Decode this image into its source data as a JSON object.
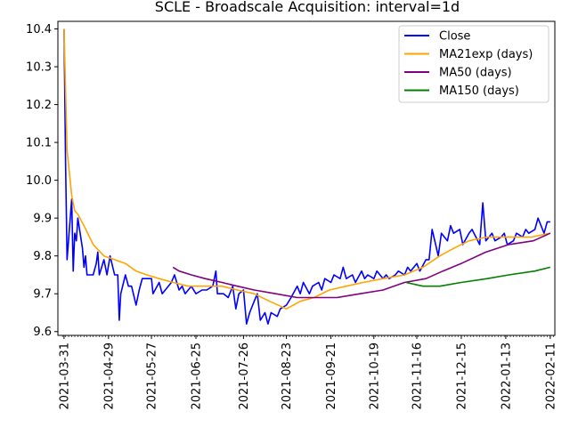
{
  "chart_data": {
    "type": "line",
    "title": "SCLE - Broadscale Acquisition: interval=1d",
    "xlabel": "",
    "ylabel": "",
    "xlim": [
      "2021-03-27",
      "2022-02-14"
    ],
    "ylim": [
      9.59,
      10.42
    ],
    "x_ticks": [
      "2021-03-31",
      "2021-04-29",
      "2021-05-27",
      "2021-06-25",
      "2021-07-26",
      "2021-08-23",
      "2021-09-21",
      "2021-10-19",
      "2021-11-16",
      "2021-12-15",
      "2022-01-13",
      "2022-02-11"
    ],
    "y_ticks": [
      "9.6",
      "9.7",
      "9.8",
      "9.9",
      "10.0",
      "10.1",
      "10.2",
      "10.3",
      "10.4"
    ],
    "grid": false,
    "legend_position": "top-right",
    "series": [
      {
        "name": "Close",
        "color": "#0000ff",
        "points": [
          [
            "2021-03-31",
            10.4
          ],
          [
            "2021-04-01",
            10.05
          ],
          [
            "2021-04-02",
            9.79
          ],
          [
            "2021-04-05",
            9.95
          ],
          [
            "2021-04-06",
            9.76
          ],
          [
            "2021-04-07",
            9.86
          ],
          [
            "2021-04-08",
            9.84
          ],
          [
            "2021-04-09",
            9.9
          ],
          [
            "2021-04-12",
            9.82
          ],
          [
            "2021-04-13",
            9.77
          ],
          [
            "2021-04-14",
            9.8
          ],
          [
            "2021-04-15",
            9.75
          ],
          [
            "2021-04-19",
            9.75
          ],
          [
            "2021-04-21",
            9.78
          ],
          [
            "2021-04-22",
            9.81
          ],
          [
            "2021-04-23",
            9.75
          ],
          [
            "2021-04-26",
            9.79
          ],
          [
            "2021-04-28",
            9.75
          ],
          [
            "2021-04-30",
            9.8
          ],
          [
            "2021-05-03",
            9.75
          ],
          [
            "2021-05-05",
            9.75
          ],
          [
            "2021-05-06",
            9.63
          ],
          [
            "2021-05-07",
            9.7
          ],
          [
            "2021-05-10",
            9.75
          ],
          [
            "2021-05-12",
            9.72
          ],
          [
            "2021-05-14",
            9.72
          ],
          [
            "2021-05-17",
            9.67
          ],
          [
            "2021-05-19",
            9.71
          ],
          [
            "2021-05-21",
            9.74
          ],
          [
            "2021-05-25",
            9.74
          ],
          [
            "2021-05-27",
            9.74
          ],
          [
            "2021-05-28",
            9.7
          ],
          [
            "2021-06-01",
            9.73
          ],
          [
            "2021-06-03",
            9.7
          ],
          [
            "2021-06-07",
            9.72
          ],
          [
            "2021-06-09",
            9.73
          ],
          [
            "2021-06-11",
            9.75
          ],
          [
            "2021-06-14",
            9.71
          ],
          [
            "2021-06-16",
            9.72
          ],
          [
            "2021-06-18",
            9.7
          ],
          [
            "2021-06-22",
            9.72
          ],
          [
            "2021-06-25",
            9.7
          ],
          [
            "2021-06-29",
            9.71
          ],
          [
            "2021-07-02",
            9.71
          ],
          [
            "2021-07-06",
            9.72
          ],
          [
            "2021-07-08",
            9.76
          ],
          [
            "2021-07-09",
            9.7
          ],
          [
            "2021-07-13",
            9.7
          ],
          [
            "2021-07-16",
            9.69
          ],
          [
            "2021-07-19",
            9.72
          ],
          [
            "2021-07-21",
            9.66
          ],
          [
            "2021-07-23",
            9.7
          ],
          [
            "2021-07-26",
            9.71
          ],
          [
            "2021-07-28",
            9.62
          ],
          [
            "2021-07-30",
            9.65
          ],
          [
            "2021-08-02",
            9.68
          ],
          [
            "2021-08-04",
            9.7
          ],
          [
            "2021-08-06",
            9.63
          ],
          [
            "2021-08-09",
            9.65
          ],
          [
            "2021-08-11",
            9.62
          ],
          [
            "2021-08-13",
            9.65
          ],
          [
            "2021-08-17",
            9.64
          ],
          [
            "2021-08-19",
            9.66
          ],
          [
            "2021-08-23",
            9.67
          ],
          [
            "2021-08-26",
            9.69
          ],
          [
            "2021-08-30",
            9.72
          ],
          [
            "2021-09-01",
            9.7
          ],
          [
            "2021-09-03",
            9.73
          ],
          [
            "2021-09-07",
            9.7
          ],
          [
            "2021-09-09",
            9.72
          ],
          [
            "2021-09-13",
            9.73
          ],
          [
            "2021-09-15",
            9.71
          ],
          [
            "2021-09-17",
            9.74
          ],
          [
            "2021-09-21",
            9.73
          ],
          [
            "2021-09-23",
            9.75
          ],
          [
            "2021-09-27",
            9.74
          ],
          [
            "2021-09-29",
            9.77
          ],
          [
            "2021-10-01",
            9.74
          ],
          [
            "2021-10-05",
            9.75
          ],
          [
            "2021-10-07",
            9.73
          ],
          [
            "2021-10-11",
            9.76
          ],
          [
            "2021-10-13",
            9.74
          ],
          [
            "2021-10-15",
            9.75
          ],
          [
            "2021-10-19",
            9.74
          ],
          [
            "2021-10-21",
            9.76
          ],
          [
            "2021-10-25",
            9.74
          ],
          [
            "2021-10-27",
            9.75
          ],
          [
            "2021-10-29",
            9.74
          ],
          [
            "2021-11-02",
            9.75
          ],
          [
            "2021-11-04",
            9.76
          ],
          [
            "2021-11-08",
            9.75
          ],
          [
            "2021-11-10",
            9.77
          ],
          [
            "2021-11-12",
            9.76
          ],
          [
            "2021-11-16",
            9.78
          ],
          [
            "2021-11-18",
            9.76
          ],
          [
            "2021-11-22",
            9.79
          ],
          [
            "2021-11-24",
            9.79
          ],
          [
            "2021-11-26",
            9.87
          ],
          [
            "2021-11-30",
            9.8
          ],
          [
            "2021-12-02",
            9.86
          ],
          [
            "2021-12-06",
            9.84
          ],
          [
            "2021-12-08",
            9.88
          ],
          [
            "2021-12-10",
            9.86
          ],
          [
            "2021-12-14",
            9.87
          ],
          [
            "2021-12-16",
            9.83
          ],
          [
            "2021-12-20",
            9.86
          ],
          [
            "2021-12-22",
            9.87
          ],
          [
            "2021-12-27",
            9.83
          ],
          [
            "2021-12-29",
            9.94
          ],
          [
            "2021-12-31",
            9.84
          ],
          [
            "2022-01-04",
            9.86
          ],
          [
            "2022-01-06",
            9.84
          ],
          [
            "2022-01-10",
            9.85
          ],
          [
            "2022-01-12",
            9.86
          ],
          [
            "2022-01-14",
            9.83
          ],
          [
            "2022-01-18",
            9.84
          ],
          [
            "2022-01-20",
            9.86
          ],
          [
            "2022-01-24",
            9.85
          ],
          [
            "2022-01-26",
            9.87
          ],
          [
            "2022-01-28",
            9.86
          ],
          [
            "2022-02-01",
            9.87
          ],
          [
            "2022-02-03",
            9.9
          ],
          [
            "2022-02-07",
            9.86
          ],
          [
            "2022-02-09",
            9.89
          ],
          [
            "2022-02-11",
            9.89
          ]
        ]
      },
      {
        "name": "MA21exp (days)",
        "color": "#ffa500",
        "points": [
          [
            "2021-03-31",
            10.4
          ],
          [
            "2021-04-02",
            10.08
          ],
          [
            "2021-04-05",
            9.96
          ],
          [
            "2021-04-07",
            9.92
          ],
          [
            "2021-04-09",
            9.91
          ],
          [
            "2021-04-13",
            9.88
          ],
          [
            "2021-04-19",
            9.83
          ],
          [
            "2021-04-26",
            9.8
          ],
          [
            "2021-05-03",
            9.79
          ],
          [
            "2021-05-10",
            9.78
          ],
          [
            "2021-05-17",
            9.76
          ],
          [
            "2021-05-24",
            9.75
          ],
          [
            "2021-06-01",
            9.74
          ],
          [
            "2021-06-10",
            9.73
          ],
          [
            "2021-06-20",
            9.72
          ],
          [
            "2021-07-01",
            9.72
          ],
          [
            "2021-07-12",
            9.72
          ],
          [
            "2021-07-22",
            9.71
          ],
          [
            "2021-08-02",
            9.7
          ],
          [
            "2021-08-12",
            9.68
          ],
          [
            "2021-08-23",
            9.66
          ],
          [
            "2021-09-01",
            9.68
          ],
          [
            "2021-09-10",
            9.69
          ],
          [
            "2021-09-20",
            9.71
          ],
          [
            "2021-10-01",
            9.72
          ],
          [
            "2021-10-12",
            9.73
          ],
          [
            "2021-10-25",
            9.74
          ],
          [
            "2021-11-08",
            9.75
          ],
          [
            "2021-11-20",
            9.77
          ],
          [
            "2021-12-01",
            9.8
          ],
          [
            "2021-12-10",
            9.82
          ],
          [
            "2021-12-20",
            9.84
          ],
          [
            "2022-01-01",
            9.85
          ],
          [
            "2022-01-15",
            9.85
          ],
          [
            "2022-01-30",
            9.85
          ],
          [
            "2022-02-11",
            9.86
          ]
        ]
      },
      {
        "name": "MA50 (days)",
        "color": "#800080",
        "points": [
          [
            "2021-06-10",
            9.77
          ],
          [
            "2021-06-14",
            9.76
          ],
          [
            "2021-06-22",
            9.75
          ],
          [
            "2021-07-01",
            9.74
          ],
          [
            "2021-07-12",
            9.73
          ],
          [
            "2021-07-22",
            9.72
          ],
          [
            "2021-08-02",
            9.71
          ],
          [
            "2021-08-16",
            9.7
          ],
          [
            "2021-08-30",
            9.69
          ],
          [
            "2021-09-10",
            9.69
          ],
          [
            "2021-09-25",
            9.69
          ],
          [
            "2021-10-10",
            9.7
          ],
          [
            "2021-10-25",
            9.71
          ],
          [
            "2021-11-08",
            9.73
          ],
          [
            "2021-11-22",
            9.74
          ],
          [
            "2021-12-03",
            9.76
          ],
          [
            "2021-12-15",
            9.78
          ],
          [
            "2021-12-31",
            9.81
          ],
          [
            "2022-01-15",
            9.83
          ],
          [
            "2022-01-31",
            9.84
          ],
          [
            "2022-02-11",
            9.86
          ]
        ]
      },
      {
        "name": "MA150 (days)",
        "color": "#008000",
        "points": [
          [
            "2021-11-09",
            9.73
          ],
          [
            "2021-11-20",
            9.72
          ],
          [
            "2021-12-01",
            9.72
          ],
          [
            "2021-12-15",
            9.73
          ],
          [
            "2022-01-01",
            9.74
          ],
          [
            "2022-01-15",
            9.75
          ],
          [
            "2022-02-01",
            9.76
          ],
          [
            "2022-02-11",
            9.77
          ]
        ]
      }
    ]
  }
}
